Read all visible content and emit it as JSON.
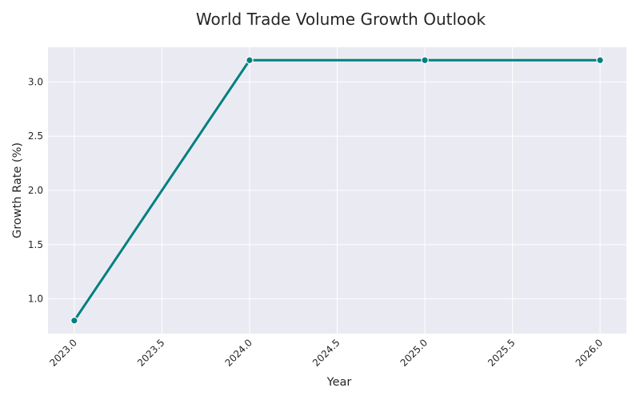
{
  "chart_data": {
    "type": "line",
    "title": "World Trade Volume Growth Outlook",
    "xlabel": "Year",
    "ylabel": "Growth Rate (%)",
    "x": [
      2023,
      2024,
      2025,
      2026
    ],
    "series": [
      {
        "values": [
          0.8,
          3.2,
          3.2,
          3.2
        ]
      }
    ],
    "xlim": [
      2022.85,
      2026.15
    ],
    "ylim": [
      0.68,
      3.32
    ],
    "xticks": [
      "2023.0",
      "2023.5",
      "2024.0",
      "2024.5",
      "2025.0",
      "2025.5",
      "2026.0"
    ],
    "yticks": [
      "1.0",
      "1.5",
      "2.0",
      "2.5",
      "3.0"
    ],
    "grid": true,
    "legend": "none",
    "colors": {
      "line": "#008080",
      "plot_background": "#EAEAF2",
      "grid": "#FFFFFF"
    }
  }
}
